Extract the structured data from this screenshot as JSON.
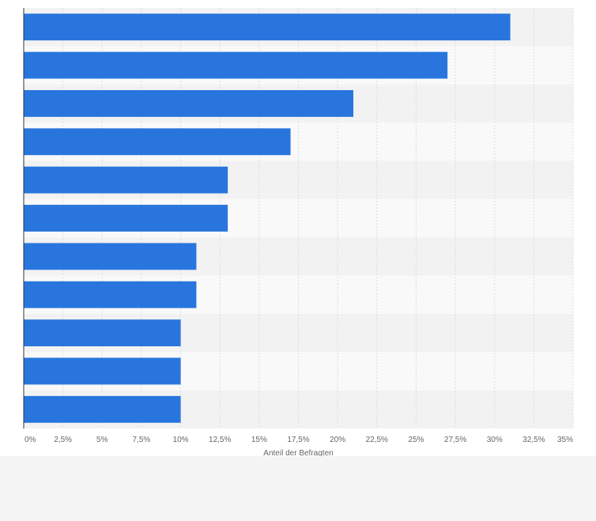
{
  "chart_data": {
    "type": "bar",
    "orientation": "horizontal",
    "categories": [
      "",
      "",
      "",
      "",
      "",
      "",
      "",
      "",
      "",
      "",
      ""
    ],
    "values": [
      31,
      27,
      21,
      17,
      13,
      13,
      11,
      11,
      10,
      10,
      10
    ],
    "xlabel": "Anteil der Befragten",
    "ylabel": "",
    "xlim": [
      0,
      35
    ],
    "x_tick_labels": [
      "0%",
      "2,5%",
      "5%",
      "7,5%",
      "10%",
      "12,5%",
      "15%",
      "17,5%",
      "20%",
      "22,5%",
      "25%",
      "27,5%",
      "30%",
      "32,5%",
      "35%"
    ],
    "grid": true,
    "legend": "none",
    "colors": {
      "bar": "#2876dd",
      "band_dark": "#f2f2f2",
      "band_light": "#f9f9f9",
      "gridline": "#dddddd",
      "axis": "#333333",
      "text": "#666666",
      "footer": "#f4f4f4"
    }
  }
}
